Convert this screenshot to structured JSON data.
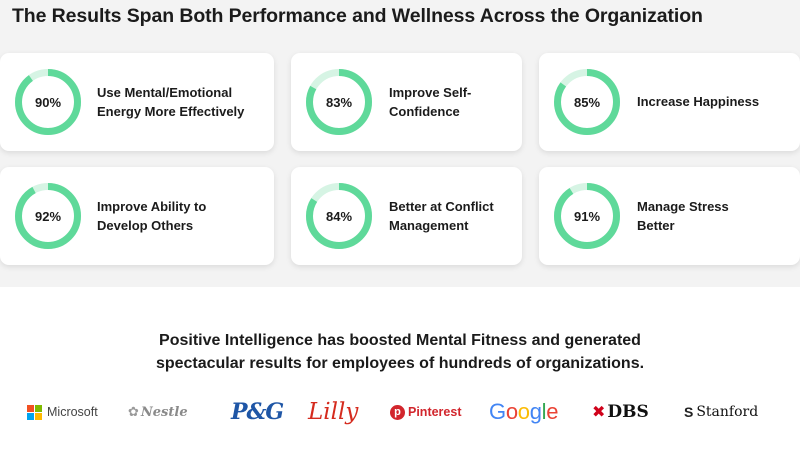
{
  "title": "The Results Span Both Performance and Wellness Across the Organization",
  "colors": {
    "ring_fill": "#5fd99a",
    "ring_track": "#d6f4e4",
    "panel_bg": "#f3f3f3"
  },
  "stats": [
    {
      "percent": 90,
      "percent_label": "90%",
      "line1": "Use Mental/Emotional",
      "line2": "Energy More Effectively"
    },
    {
      "percent": 83,
      "percent_label": "83%",
      "line1": "Improve Self-",
      "line2": "Confidence"
    },
    {
      "percent": 85,
      "percent_label": "85%",
      "line1": "Increase Happiness",
      "line2": ""
    },
    {
      "percent": 92,
      "percent_label": "92%",
      "line1": "Improve Ability to",
      "line2": "Develop Others"
    },
    {
      "percent": 84,
      "percent_label": "84%",
      "line1": "Better at Conflict",
      "line2": "Management"
    },
    {
      "percent": 91,
      "percent_label": "91%",
      "line1": "Manage Stress",
      "line2": "Better"
    }
  ],
  "tagline": {
    "line1": "Positive Intelligence has boosted Mental Fitness and generated",
    "line2": "spectacular results for employees of hundreds of organizations."
  },
  "logos": {
    "microsoft": "Microsoft",
    "nestle": "Nestle",
    "pg": "P&G",
    "lilly": "Lilly",
    "pinterest": "Pinterest",
    "google": [
      "G",
      "o",
      "o",
      "g",
      "l",
      "e"
    ],
    "dbs": "DBS",
    "stanford": "Stanford"
  }
}
